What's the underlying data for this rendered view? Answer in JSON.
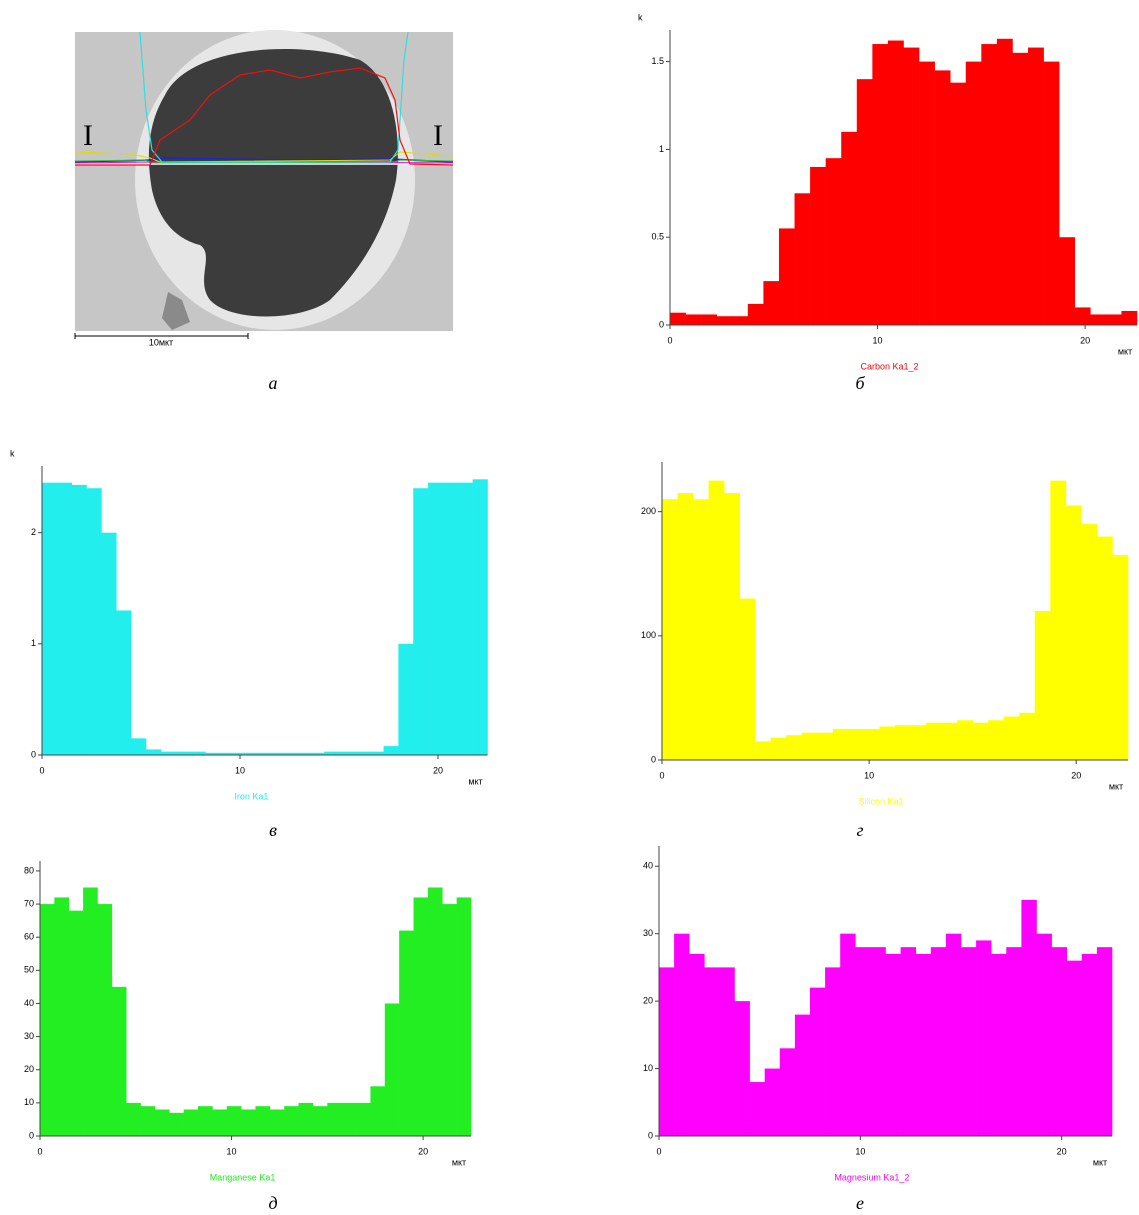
{
  "figure": {
    "markers": [
      "I",
      "I"
    ],
    "scale_label": "10мкт",
    "caption": "а"
  },
  "chart_data": [
    {
      "type": "histogram",
      "caption": "б",
      "y_unit_label": "k",
      "xlabel": "мкт",
      "bins": [
        0,
        0.75,
        1.5,
        2.25,
        3,
        3.75,
        4.5,
        5.25,
        6,
        6.75,
        7.5,
        8.25,
        9,
        9.75,
        10.5,
        11.25,
        12,
        12.75,
        13.5,
        14.25,
        15,
        15.75,
        16.5,
        17.25,
        18,
        18.75,
        19.5,
        20.25,
        21,
        21.75,
        22.5
      ],
      "series": [
        {
          "name": "Carbon Ka1_2",
          "color": "#ff0000",
          "values": [
            0.07,
            0.06,
            0.06,
            0.05,
            0.05,
            0.12,
            0.25,
            0.55,
            0.75,
            0.9,
            0.95,
            1.1,
            1.4,
            1.6,
            1.62,
            1.58,
            1.5,
            1.45,
            1.38,
            1.5,
            1.6,
            1.63,
            1.55,
            1.58,
            1.5,
            0.5,
            0.1,
            0.06,
            0.06,
            0.08
          ]
        }
      ],
      "xlim": [
        0,
        22.5
      ],
      "xticks": [
        0,
        10,
        20
      ],
      "ylim": [
        0,
        1.68
      ],
      "yticks": [
        0,
        0.5,
        1,
        1.5
      ]
    },
    {
      "type": "histogram",
      "caption": "в",
      "y_unit_label": "k",
      "xlabel": "мкт",
      "bins": [
        0,
        0.75,
        1.5,
        2.25,
        3,
        3.75,
        4.5,
        5.25,
        6,
        6.75,
        7.5,
        8.25,
        9,
        9.75,
        10.5,
        11.25,
        12,
        12.75,
        13.5,
        14.25,
        15,
        15.75,
        16.5,
        17.25,
        18,
        18.75,
        19.5,
        20.25,
        21,
        21.75,
        22.5
      ],
      "series": [
        {
          "name": "Iron Ka1",
          "color": "#22eeee",
          "values": [
            2.45,
            2.45,
            2.43,
            2.4,
            2.0,
            1.3,
            0.15,
            0.05,
            0.03,
            0.03,
            0.03,
            0.02,
            0.02,
            0.02,
            0.02,
            0.02,
            0.02,
            0.02,
            0.02,
            0.03,
            0.03,
            0.03,
            0.03,
            0.08,
            1.0,
            2.4,
            2.45,
            2.45,
            2.45,
            2.48
          ]
        }
      ],
      "xlim": [
        0,
        22.5
      ],
      "xticks": [
        0,
        10,
        20
      ],
      "ylim": [
        0,
        2.6
      ],
      "yticks": [
        0,
        1,
        2
      ]
    },
    {
      "type": "histogram",
      "caption": "г",
      "xlabel": "мкт",
      "bins": [
        0,
        0.75,
        1.5,
        2.25,
        3,
        3.75,
        4.5,
        5.25,
        6,
        6.75,
        7.5,
        8.25,
        9,
        9.75,
        10.5,
        11.25,
        12,
        12.75,
        13.5,
        14.25,
        15,
        15.75,
        16.5,
        17.25,
        18,
        18.75,
        19.5,
        20.25,
        21,
        21.75,
        22.5
      ],
      "series": [
        {
          "name": "Silicon Ka1",
          "color": "#ffff00",
          "values": [
            210,
            215,
            210,
            225,
            215,
            130,
            15,
            18,
            20,
            22,
            22,
            25,
            25,
            25,
            27,
            28,
            28,
            30,
            30,
            32,
            30,
            32,
            35,
            38,
            120,
            225,
            205,
            190,
            180,
            165
          ]
        }
      ],
      "xlim": [
        0,
        22.5
      ],
      "xticks": [
        0,
        10,
        20
      ],
      "ylim": [
        0,
        240
      ],
      "yticks": [
        0,
        100,
        200
      ]
    },
    {
      "type": "histogram",
      "caption": "д",
      "xlabel": "мкт",
      "bins": [
        0,
        0.75,
        1.5,
        2.25,
        3,
        3.75,
        4.5,
        5.25,
        6,
        6.75,
        7.5,
        8.25,
        9,
        9.75,
        10.5,
        11.25,
        12,
        12.75,
        13.5,
        14.25,
        15,
        15.75,
        16.5,
        17.25,
        18,
        18.75,
        19.5,
        20.25,
        21,
        21.75,
        22.5
      ],
      "series": [
        {
          "name": "Manganese Ka1",
          "color": "#22ee22",
          "values": [
            70,
            72,
            68,
            75,
            70,
            45,
            10,
            9,
            8,
            7,
            8,
            9,
            8,
            9,
            8,
            9,
            8,
            9,
            10,
            9,
            10,
            10,
            10,
            15,
            40,
            62,
            72,
            75,
            70,
            72
          ]
        }
      ],
      "xlim": [
        0,
        22.5
      ],
      "xticks": [
        0,
        10,
        20
      ],
      "ylim": [
        0,
        83
      ],
      "yticks": [
        0,
        10,
        20,
        30,
        40,
        50,
        60,
        70,
        80
      ]
    },
    {
      "type": "histogram",
      "caption": "е",
      "xlabel": "мкт",
      "bins": [
        0,
        0.75,
        1.5,
        2.25,
        3,
        3.75,
        4.5,
        5.25,
        6,
        6.75,
        7.5,
        8.25,
        9,
        9.75,
        10.5,
        11.25,
        12,
        12.75,
        13.5,
        14.25,
        15,
        15.75,
        16.5,
        17.25,
        18,
        18.75,
        19.5,
        20.25,
        21,
        21.75,
        22.5
      ],
      "series": [
        {
          "name": "Magnesium Ka1_2",
          "color": "#ff00ff",
          "values": [
            25,
            30,
            27,
            25,
            25,
            20,
            8,
            10,
            13,
            18,
            22,
            25,
            30,
            28,
            28,
            27,
            28,
            27,
            28,
            30,
            28,
            29,
            27,
            28,
            35,
            30,
            28,
            26,
            27,
            28
          ]
        }
      ],
      "xlim": [
        0,
        22.5
      ],
      "xticks": [
        0,
        10,
        20
      ],
      "ylim": [
        0,
        43
      ],
      "yticks": [
        0,
        10,
        20,
        30,
        40
      ]
    }
  ]
}
